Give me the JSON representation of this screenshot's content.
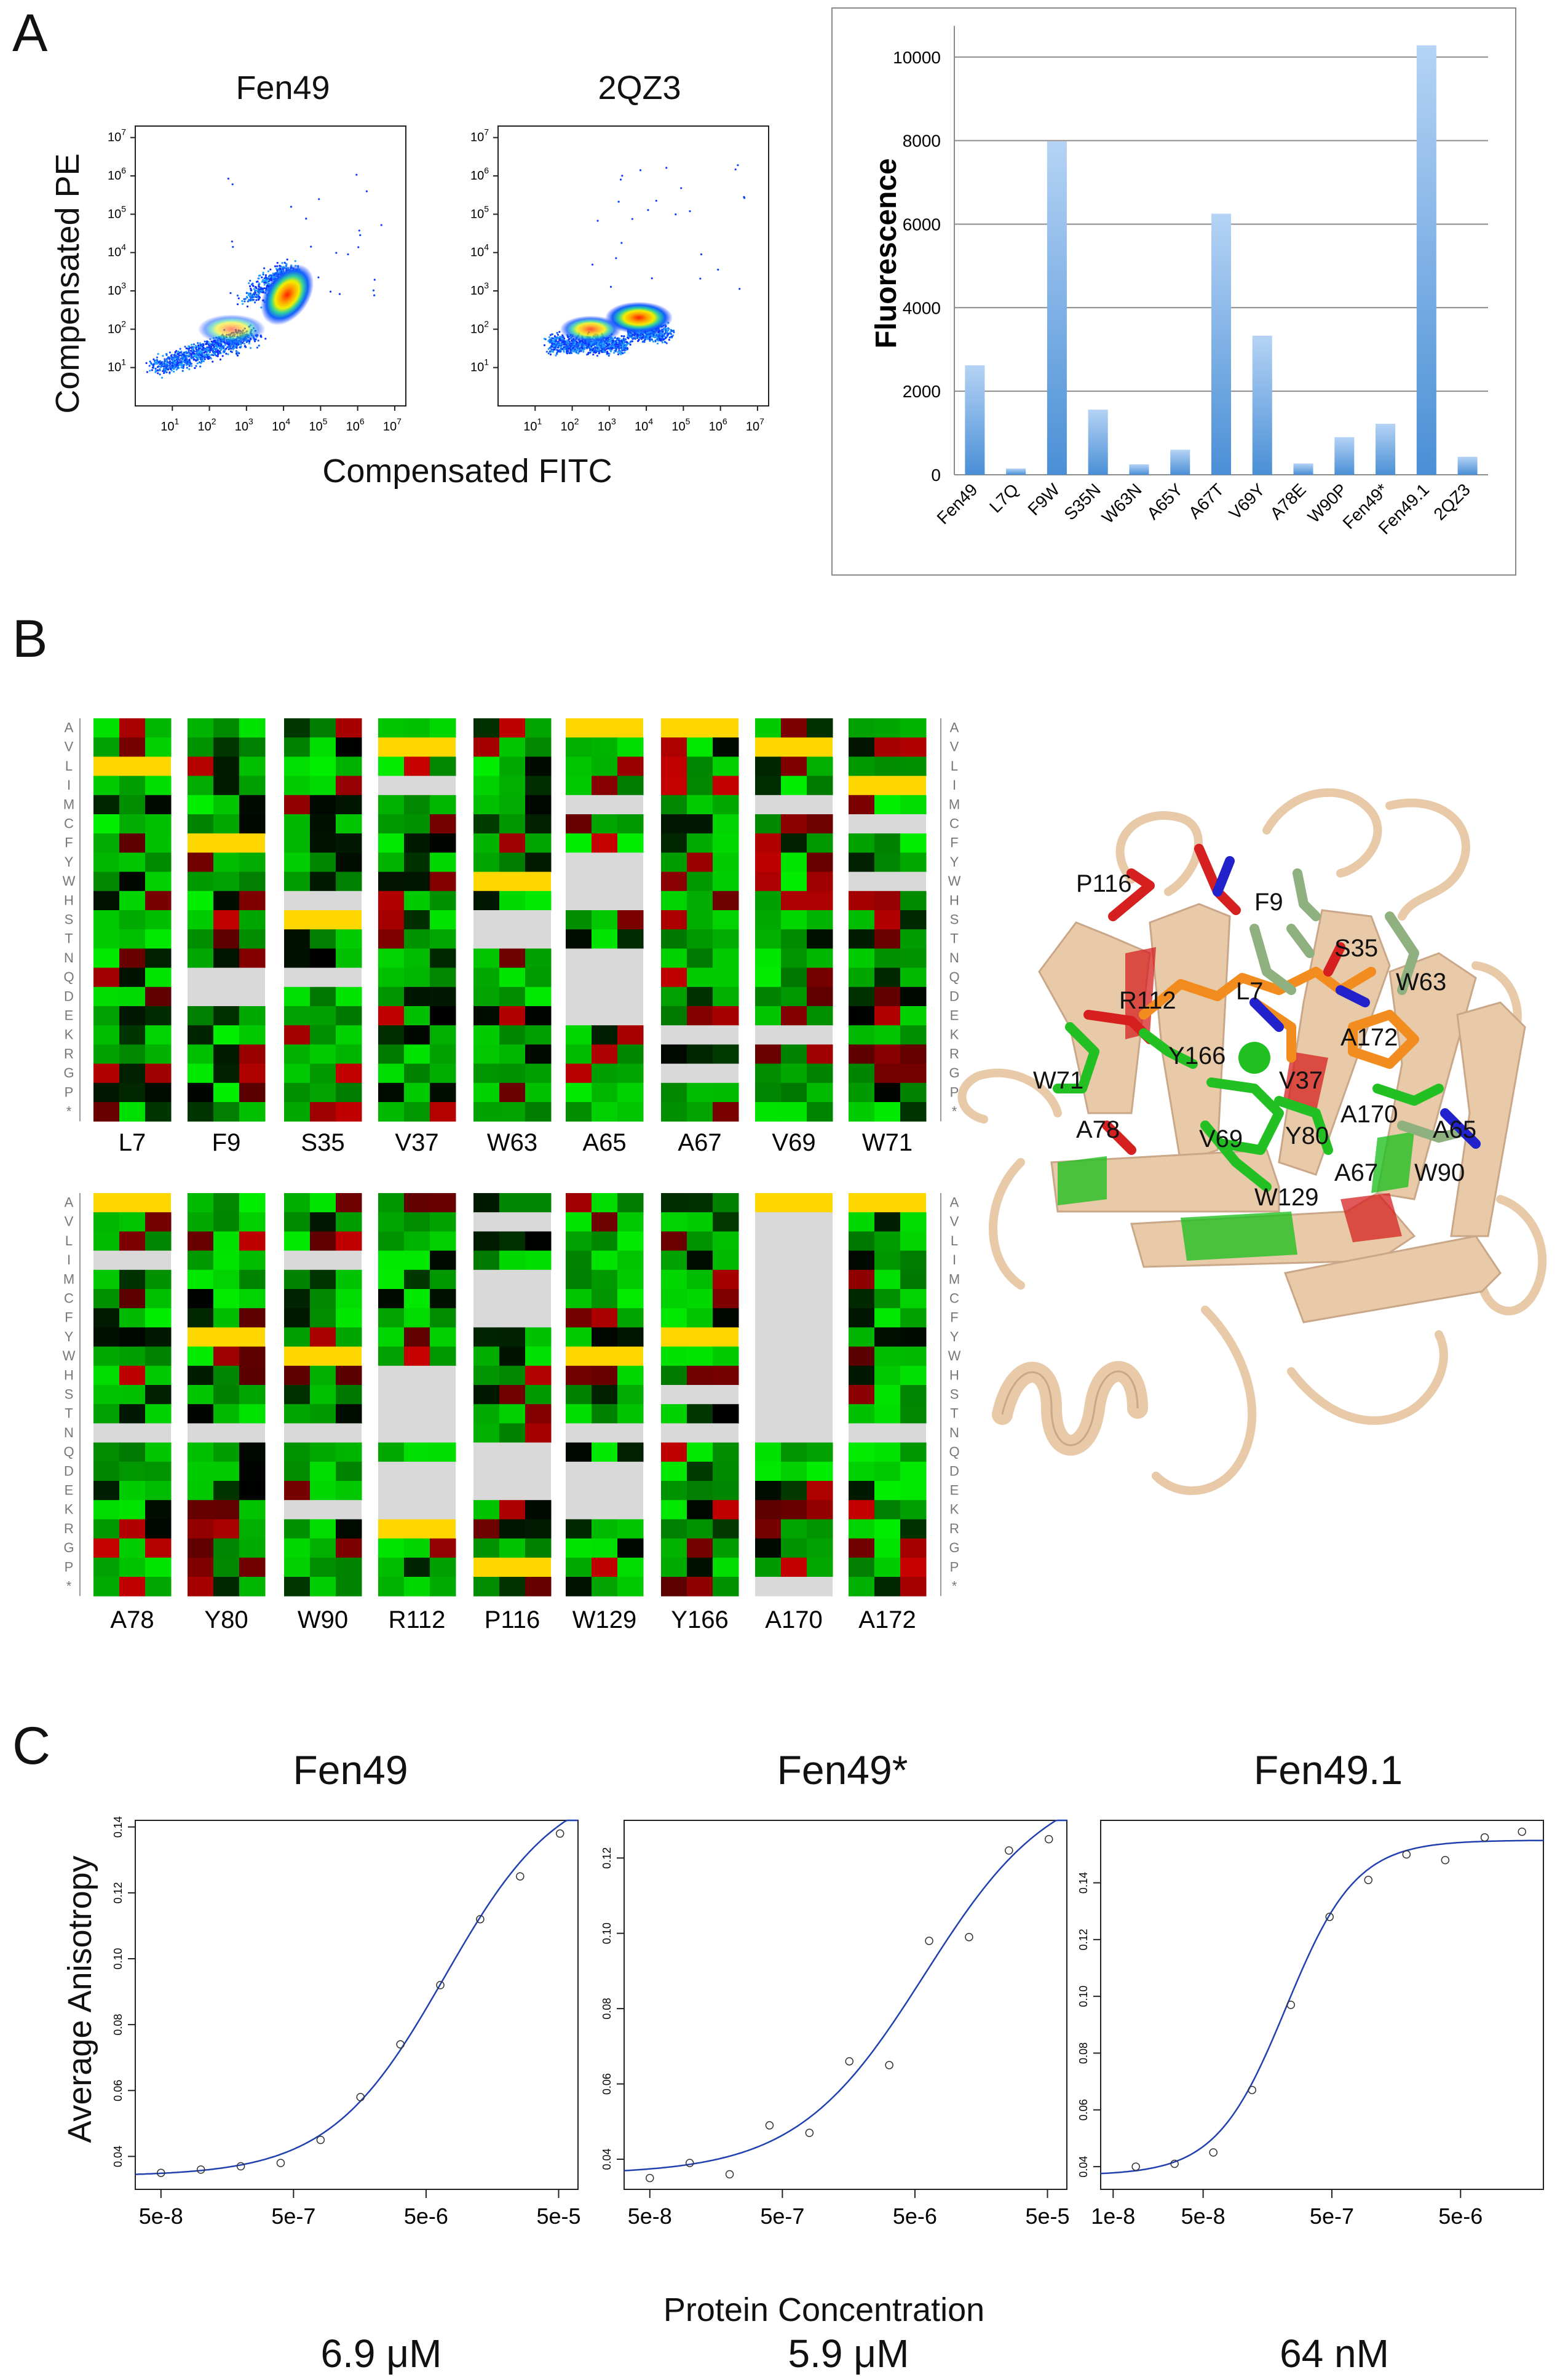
{
  "panels": {
    "a": "A",
    "b": "B",
    "c": "C"
  },
  "panel_a": {
    "flow_titles": [
      "Fen49",
      "2QZ3"
    ],
    "flow_ylabel": "Compensated PE",
    "flow_xlabel": "Compensated FITC",
    "flow_ticks": [
      "10",
      "1",
      "10",
      "2",
      "10",
      "3",
      "10",
      "4",
      "10",
      "5",
      "10",
      "6",
      "10",
      "7"
    ]
  },
  "chart_data": [
    {
      "type": "scatter",
      "title": "Fen49",
      "xlabel": "Compensated FITC",
      "ylabel": "Compensated PE",
      "x_scale": "log",
      "y_scale": "log",
      "xlim": [
        1,
        10000000
      ],
      "ylim": [
        1,
        10000000
      ],
      "xticks": [
        "10^1",
        "10^2",
        "10^3",
        "10^4",
        "10^5",
        "10^6",
        "10^7"
      ],
      "yticks": [
        "10^1",
        "10^2",
        "10^3",
        "10^4",
        "10^5",
        "10^6",
        "10^7"
      ]
    },
    {
      "type": "scatter",
      "title": "2QZ3",
      "xlabel": "Compensated FITC",
      "ylabel": "Compensated PE",
      "x_scale": "log",
      "y_scale": "log",
      "xlim": [
        1,
        10000000
      ],
      "ylim": [
        1,
        10000000
      ],
      "xticks": [
        "10^1",
        "10^2",
        "10^3",
        "10^4",
        "10^5",
        "10^6",
        "10^7"
      ],
      "yticks": [
        "10^1",
        "10^2",
        "10^3",
        "10^4",
        "10^5",
        "10^6",
        "10^7"
      ]
    },
    {
      "type": "bar",
      "ylabel": "Fluorescence",
      "xlabel": "",
      "categories": [
        "Fen49",
        "L7Q",
        "F9W",
        "S35N",
        "W63N",
        "A65Y",
        "A67T",
        "V69Y",
        "A78E",
        "W90P",
        "Fen49*",
        "Fen49.1",
        "2QZ3"
      ],
      "values": [
        2620,
        150,
        7980,
        1560,
        250,
        600,
        6250,
        3330,
        270,
        900,
        1220,
        10280,
        430
      ],
      "ylim": [
        0,
        10600
      ],
      "yticks": [
        "0",
        "2000",
        "4000",
        "6000",
        "8000",
        "10000"
      ],
      "grid": true,
      "colors": {
        "bar_top": "#b5d3f5",
        "bar_bottom": "#4a8fd6"
      }
    },
    {
      "type": "heatmap",
      "description_rows": "amino acids",
      "row_labels": [
        "A",
        "V",
        "L",
        "I",
        "M",
        "C",
        "F",
        "Y",
        "W",
        "H",
        "S",
        "T",
        "N",
        "Q",
        "D",
        "E",
        "K",
        "R",
        "G",
        "P",
        "*"
      ],
      "top_columns": [
        "L7",
        "F9",
        "S35",
        "V37",
        "W63",
        "A65",
        "A67",
        "V69",
        "W71"
      ],
      "bottom_columns": [
        "A78",
        "Y80",
        "W90",
        "R112",
        "P116",
        "W129",
        "Y166",
        "A170",
        "A172"
      ],
      "wildtype_top": [
        "L",
        "F",
        "S",
        "V",
        "W",
        "A",
        "A",
        "V",
        "I"
      ],
      "wildtype_bottom": [
        "A",
        "Y",
        "W",
        "R",
        "P",
        "W",
        "Y",
        "A",
        "A"
      ],
      "colors": {
        "wildtype": "#ffd700",
        "missing": "#d9d9d9",
        "enriched": "#00c800",
        "depleted": "#b00000",
        "neutral": "#000000"
      }
    },
    {
      "type": "line",
      "title": "Fen49",
      "xlabel": "Protein Concentration",
      "ylabel": "Average Anisotropy",
      "x_scale": "log",
      "xticks": [
        "5e-8",
        "5e-7",
        "5e-6",
        "5e-5"
      ],
      "yticks": [
        "0.04",
        "0.06",
        "0.08",
        "0.10",
        "0.12",
        "0.14"
      ],
      "points_x": [
        5e-08,
        1e-07,
        2e-07,
        4e-07,
        8e-07,
        1.6e-06,
        3.2e-06,
        6.4e-06,
        1.28e-05,
        2.56e-05,
        5.12e-05
      ],
      "points_y": [
        0.035,
        0.036,
        0.037,
        0.038,
        0.045,
        0.058,
        0.074,
        0.092,
        0.112,
        0.125,
        0.138
      ],
      "kd_label": "6.9 μM"
    },
    {
      "type": "line",
      "title": "Fen49*",
      "xlabel": "Protein Concentration",
      "ylabel": "Average Anisotropy",
      "x_scale": "log",
      "xticks": [
        "5e-8",
        "5e-7",
        "5e-6",
        "5e-5"
      ],
      "yticks": [
        "0.04",
        "0.06",
        "0.08",
        "0.10",
        "0.12"
      ],
      "points_x": [
        5e-08,
        1e-07,
        2e-07,
        4e-07,
        8e-07,
        1.6e-06,
        3.2e-06,
        6.4e-06,
        1.28e-05,
        2.56e-05,
        5.12e-05
      ],
      "points_y": [
        0.035,
        0.039,
        0.036,
        0.049,
        0.047,
        0.066,
        0.065,
        0.098,
        0.099,
        0.122,
        0.125
      ],
      "kd_label": "5.9 μM"
    },
    {
      "type": "line",
      "title": "Fen49.1",
      "xlabel": "Protein Concentration",
      "ylabel": "Average Anisotropy",
      "x_scale": "log",
      "xticks": [
        "1e-8",
        "5e-8",
        "5e-7",
        "5e-6"
      ],
      "yticks": [
        "0.04",
        "0.06",
        "0.08",
        "0.10",
        "0.12",
        "0.14"
      ],
      "points_x": [
        1.5e-08,
        3e-08,
        6e-08,
        1.2e-07,
        2.4e-07,
        4.8e-07,
        9.6e-07,
        1.9e-06,
        3.8e-06,
        7.7e-06,
        1.5e-05
      ],
      "points_y": [
        0.04,
        0.041,
        0.045,
        0.067,
        0.097,
        0.128,
        0.141,
        0.15,
        0.148,
        0.156,
        0.158
      ],
      "kd_label": "64 nM"
    }
  ],
  "panel_c": {
    "ylabel": "Average Anisotropy",
    "xlabel": "Protein Concentration"
  },
  "structure": {
    "labels": [
      "P116",
      "F9",
      "S35",
      "R112",
      "W63",
      "L7",
      "A172",
      "Y166",
      "V37",
      "W71",
      "A170",
      "A65",
      "V69",
      "A78",
      "Y80",
      "A67",
      "W90",
      "W129"
    ],
    "colors": {
      "ribbon": "#e8c9a8",
      "orange": "#f28c1e",
      "green": "#22c022",
      "sage": "#8fb07f",
      "red": "#d62020",
      "blue": "#2222cc"
    }
  }
}
